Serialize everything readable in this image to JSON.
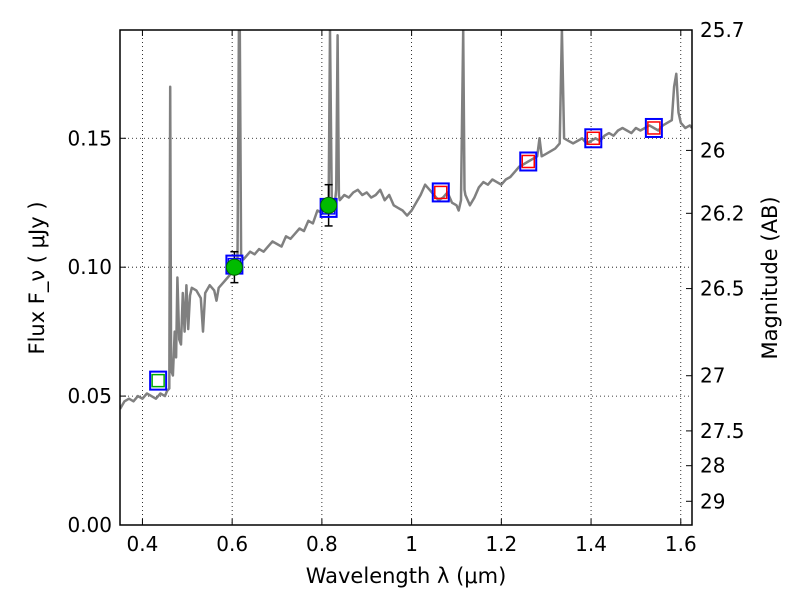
{
  "chart_data": {
    "type": "line",
    "xlabel": "Wavelength  λ (μm)",
    "ylabel": "Flux  F_ν  ( μJy )",
    "ylabel_right": "Magnitude (AB)",
    "xlim": [
      0.35,
      1.625
    ],
    "ylim": [
      0.0,
      0.192
    ],
    "grid": true,
    "x_ticks": [
      0.4,
      0.6,
      0.8,
      1.0,
      1.2,
      1.4,
      1.6
    ],
    "x_tick_labels": [
      "0.4",
      "0.6",
      "0.8",
      "1",
      "1.2",
      "1.4",
      "1.6"
    ],
    "y_ticks": [
      0.0,
      0.05,
      0.1,
      0.15
    ],
    "y_tick_labels": [
      "0.00",
      "0.05",
      "0.10",
      "0.15"
    ],
    "right_ticks": [
      {
        "label": "25.7",
        "flux": 0.192
      },
      {
        "label": "26",
        "flux": 0.1453
      },
      {
        "label": "26.2",
        "flux": 0.1209
      },
      {
        "label": "26.5",
        "flux": 0.0917
      },
      {
        "label": "27",
        "flux": 0.0579
      },
      {
        "label": "27.5",
        "flux": 0.0365
      },
      {
        "label": "28",
        "flux": 0.023
      },
      {
        "label": "29",
        "flux": 0.0092
      }
    ],
    "series": [
      {
        "type": "spectrum",
        "color": "#808080",
        "points": [
          [
            0.35,
            0.045
          ],
          [
            0.36,
            0.048
          ],
          [
            0.37,
            0.049
          ],
          [
            0.38,
            0.048
          ],
          [
            0.39,
            0.05
          ],
          [
            0.4,
            0.049
          ],
          [
            0.41,
            0.051
          ],
          [
            0.42,
            0.05
          ],
          [
            0.43,
            0.049
          ],
          [
            0.44,
            0.051
          ],
          [
            0.45,
            0.05
          ],
          [
            0.455,
            0.052
          ],
          [
            0.46,
            0.053
          ],
          [
            0.462,
            0.17
          ],
          [
            0.464,
            0.06
          ],
          [
            0.468,
            0.058
          ],
          [
            0.472,
            0.075
          ],
          [
            0.475,
            0.065
          ],
          [
            0.478,
            0.096
          ],
          [
            0.482,
            0.072
          ],
          [
            0.486,
            0.07
          ],
          [
            0.49,
            0.09
          ],
          [
            0.494,
            0.075
          ],
          [
            0.498,
            0.093
          ],
          [
            0.502,
            0.076
          ],
          [
            0.506,
            0.089
          ],
          [
            0.51,
            0.092
          ],
          [
            0.52,
            0.091
          ],
          [
            0.53,
            0.088
          ],
          [
            0.535,
            0.075
          ],
          [
            0.54,
            0.09
          ],
          [
            0.55,
            0.093
          ],
          [
            0.56,
            0.091
          ],
          [
            0.565,
            0.087
          ],
          [
            0.57,
            0.092
          ],
          [
            0.58,
            0.094
          ],
          [
            0.59,
            0.096
          ],
          [
            0.6,
            0.098
          ],
          [
            0.605,
            0.1
          ],
          [
            0.61,
            0.101
          ],
          [
            0.612,
            0.103
          ],
          [
            0.615,
            0.192
          ],
          [
            0.617,
            0.192
          ],
          [
            0.62,
            0.105
          ],
          [
            0.625,
            0.103
          ],
          [
            0.63,
            0.104
          ],
          [
            0.64,
            0.106
          ],
          [
            0.65,
            0.105
          ],
          [
            0.66,
            0.107
          ],
          [
            0.67,
            0.106
          ],
          [
            0.68,
            0.108
          ],
          [
            0.69,
            0.11
          ],
          [
            0.7,
            0.109
          ],
          [
            0.71,
            0.108
          ],
          [
            0.72,
            0.112
          ],
          [
            0.73,
            0.111
          ],
          [
            0.74,
            0.113
          ],
          [
            0.75,
            0.115
          ],
          [
            0.76,
            0.114
          ],
          [
            0.77,
            0.118
          ],
          [
            0.78,
            0.117
          ],
          [
            0.79,
            0.122
          ],
          [
            0.8,
            0.121
          ],
          [
            0.81,
            0.124
          ],
          [
            0.815,
            0.123
          ],
          [
            0.818,
            0.192
          ],
          [
            0.822,
            0.124
          ],
          [
            0.828,
            0.123
          ],
          [
            0.832,
            0.13
          ],
          [
            0.835,
            0.19
          ],
          [
            0.838,
            0.128
          ],
          [
            0.84,
            0.126
          ],
          [
            0.85,
            0.128
          ],
          [
            0.86,
            0.127
          ],
          [
            0.87,
            0.129
          ],
          [
            0.88,
            0.13
          ],
          [
            0.89,
            0.128
          ],
          [
            0.9,
            0.129
          ],
          [
            0.91,
            0.127
          ],
          [
            0.92,
            0.128
          ],
          [
            0.93,
            0.13
          ],
          [
            0.94,
            0.126
          ],
          [
            0.95,
            0.128
          ],
          [
            0.96,
            0.124
          ],
          [
            0.97,
            0.123
          ],
          [
            0.98,
            0.122
          ],
          [
            0.99,
            0.12
          ],
          [
            1.0,
            0.122
          ],
          [
            1.01,
            0.125
          ],
          [
            1.02,
            0.128
          ],
          [
            1.03,
            0.132
          ],
          [
            1.04,
            0.13
          ],
          [
            1.05,
            0.128
          ],
          [
            1.06,
            0.126
          ],
          [
            1.07,
            0.127
          ],
          [
            1.08,
            0.129
          ],
          [
            1.09,
            0.125
          ],
          [
            1.1,
            0.124
          ],
          [
            1.105,
            0.122
          ],
          [
            1.11,
            0.126
          ],
          [
            1.115,
            0.192
          ],
          [
            1.118,
            0.13
          ],
          [
            1.12,
            0.128
          ],
          [
            1.13,
            0.124
          ],
          [
            1.14,
            0.127
          ],
          [
            1.15,
            0.131
          ],
          [
            1.16,
            0.133
          ],
          [
            1.17,
            0.132
          ],
          [
            1.18,
            0.134
          ],
          [
            1.19,
            0.133
          ],
          [
            1.2,
            0.132
          ],
          [
            1.21,
            0.134
          ],
          [
            1.22,
            0.135
          ],
          [
            1.23,
            0.137
          ],
          [
            1.24,
            0.139
          ],
          [
            1.25,
            0.14
          ],
          [
            1.26,
            0.141
          ],
          [
            1.27,
            0.142
          ],
          [
            1.28,
            0.143
          ],
          [
            1.285,
            0.15
          ],
          [
            1.29,
            0.143
          ],
          [
            1.3,
            0.144
          ],
          [
            1.31,
            0.145
          ],
          [
            1.32,
            0.146
          ],
          [
            1.33,
            0.148
          ],
          [
            1.335,
            0.192
          ],
          [
            1.34,
            0.15
          ],
          [
            1.35,
            0.149
          ],
          [
            1.36,
            0.148
          ],
          [
            1.37,
            0.149
          ],
          [
            1.38,
            0.15
          ],
          [
            1.39,
            0.148
          ],
          [
            1.4,
            0.149
          ],
          [
            1.41,
            0.15
          ],
          [
            1.42,
            0.149
          ],
          [
            1.43,
            0.151
          ],
          [
            1.44,
            0.152
          ],
          [
            1.45,
            0.151
          ],
          [
            1.46,
            0.153
          ],
          [
            1.47,
            0.154
          ],
          [
            1.48,
            0.153
          ],
          [
            1.49,
            0.152
          ],
          [
            1.5,
            0.154
          ],
          [
            1.51,
            0.153
          ],
          [
            1.52,
            0.154
          ],
          [
            1.53,
            0.155
          ],
          [
            1.54,
            0.154
          ],
          [
            1.55,
            0.153
          ],
          [
            1.56,
            0.155
          ],
          [
            1.57,
            0.156
          ],
          [
            1.58,
            0.157
          ],
          [
            1.585,
            0.17
          ],
          [
            1.59,
            0.175
          ],
          [
            1.595,
            0.16
          ],
          [
            1.6,
            0.156
          ],
          [
            1.61,
            0.154
          ],
          [
            1.62,
            0.155
          ],
          [
            1.625,
            0.154
          ]
        ]
      }
    ],
    "model_photometry": [
      {
        "x": 0.435,
        "y": 0.056,
        "color": "#00aa00"
      },
      {
        "x": 0.605,
        "y": 0.101,
        "color": "#0000ff"
      },
      {
        "x": 0.815,
        "y": 0.123,
        "color": "#0000ff"
      },
      {
        "x": 1.065,
        "y": 0.129,
        "color": "#ff0000"
      },
      {
        "x": 1.26,
        "y": 0.141,
        "color": "#ff0000"
      },
      {
        "x": 1.405,
        "y": 0.15,
        "color": "#ff0000"
      },
      {
        "x": 1.54,
        "y": 0.154,
        "color": "#ff0000"
      }
    ],
    "observed": [
      {
        "x": 0.605,
        "y": 0.1,
        "err": 0.006,
        "color": "#00bb00"
      },
      {
        "x": 0.815,
        "y": 0.124,
        "err": 0.008,
        "color": "#00bb00"
      }
    ]
  }
}
